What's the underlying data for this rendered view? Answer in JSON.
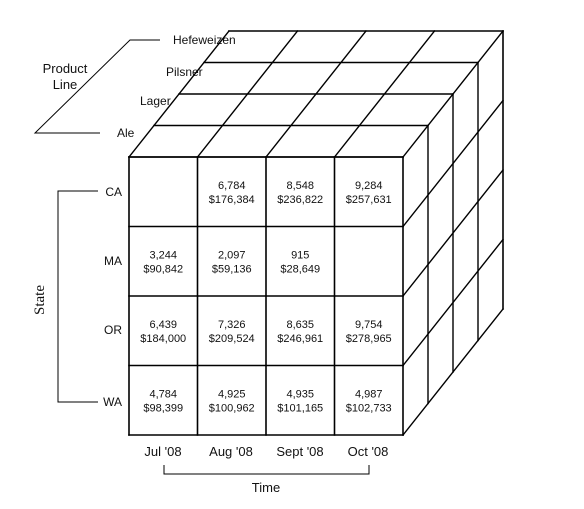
{
  "cube": {
    "product_line_label_lines": [
      "Product",
      "Line"
    ],
    "products_back_to_front": [
      "Hefeweizen",
      "Pilsner",
      "Lager",
      "Ale"
    ],
    "state_label": "State",
    "states": [
      "CA",
      "MA",
      "OR",
      "WA"
    ],
    "time_label": "Time",
    "months": [
      "Jul '08",
      "Aug '08",
      "Sept '08",
      "Oct '08"
    ],
    "front_face_product": "Ale",
    "cells": [
      [
        {
          "units": "",
          "revenue": ""
        },
        {
          "units": "6,784",
          "revenue": "$176,384"
        },
        {
          "units": "8,548",
          "revenue": "$236,822"
        },
        {
          "units": "9,284",
          "revenue": "$257,631"
        }
      ],
      [
        {
          "units": "3,244",
          "revenue": "$90,842"
        },
        {
          "units": "2,097",
          "revenue": "$59,136"
        },
        {
          "units": "915",
          "revenue": "$28,649"
        },
        {
          "units": "",
          "revenue": ""
        }
      ],
      [
        {
          "units": "6,439",
          "revenue": "$184,000"
        },
        {
          "units": "7,326",
          "revenue": "$209,524"
        },
        {
          "units": "8,635",
          "revenue": "$246,961"
        },
        {
          "units": "9,754",
          "revenue": "$278,965"
        }
      ],
      [
        {
          "units": "4,784",
          "revenue": "$98,399"
        },
        {
          "units": "4,925",
          "revenue": "$100,962"
        },
        {
          "units": "4,935",
          "revenue": "$101,165"
        },
        {
          "units": "4,987",
          "revenue": "$102,733"
        }
      ]
    ]
  }
}
